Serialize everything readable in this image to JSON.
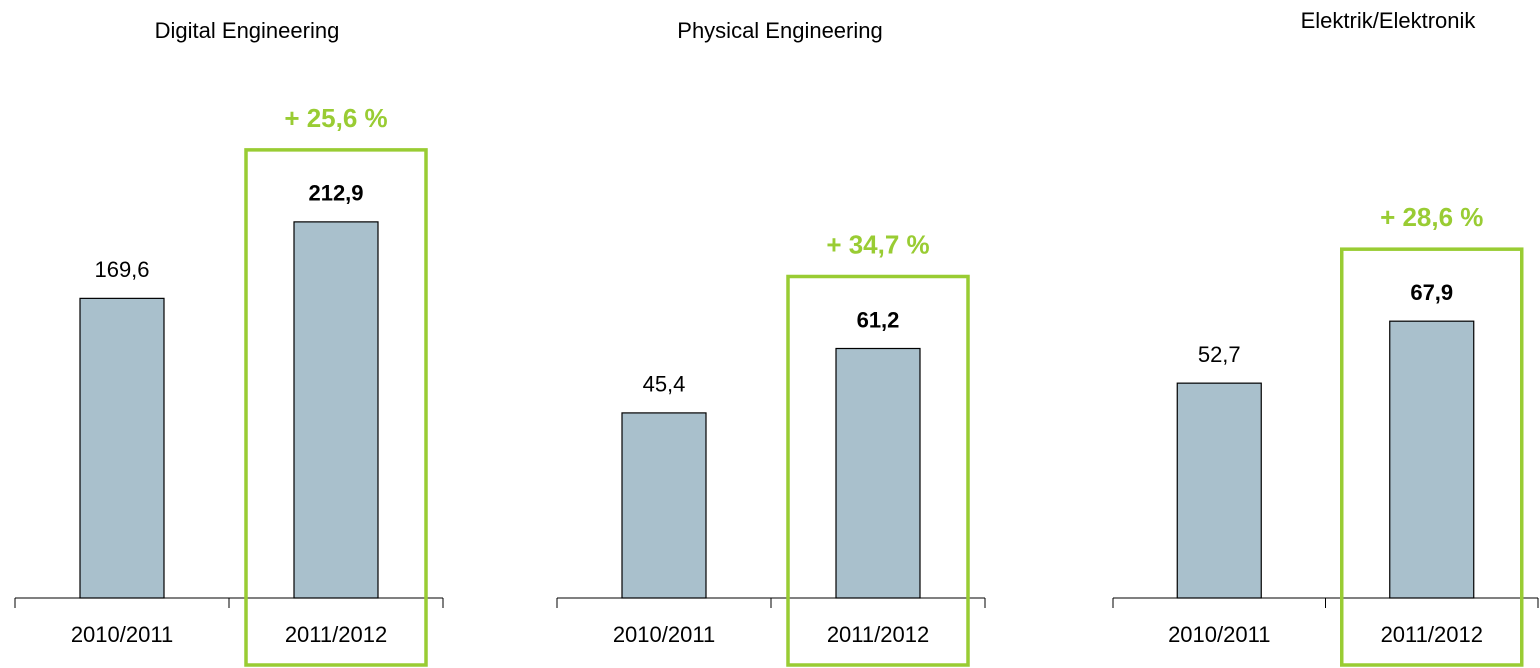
{
  "chart_data": [
    {
      "type": "bar",
      "title": "Digital Engineering",
      "categories": [
        "2010/2011",
        "2011/2012"
      ],
      "values": [
        169.6,
        212.9
      ],
      "value_labels": [
        "169,6",
        "212,9"
      ],
      "annotation": "+ 25,6 %",
      "color": "#a9c0cc",
      "highlight_color": "#99cc33",
      "ylim": [
        0,
        300
      ]
    },
    {
      "type": "bar",
      "title": "Physical Engineering",
      "categories": [
        "2010/2011",
        "2011/2012"
      ],
      "values": [
        45.4,
        61.2
      ],
      "value_labels": [
        "45,4",
        "61,2"
      ],
      "annotation": "+ 34,7 %",
      "color": "#a9c0cc",
      "highlight_color": "#99cc33",
      "ylim": [
        0,
        130
      ]
    },
    {
      "type": "bar",
      "title": "Elektrik/Elektronik",
      "categories": [
        "2010/2011",
        "2011/2012"
      ],
      "values": [
        52.7,
        67.9
      ],
      "value_labels": [
        "52,7",
        "67,9"
      ],
      "annotation": "+ 28,6 %",
      "color": "#a9c0cc",
      "highlight_color": "#99cc33",
      "ylim": [
        0,
        130
      ]
    }
  ]
}
